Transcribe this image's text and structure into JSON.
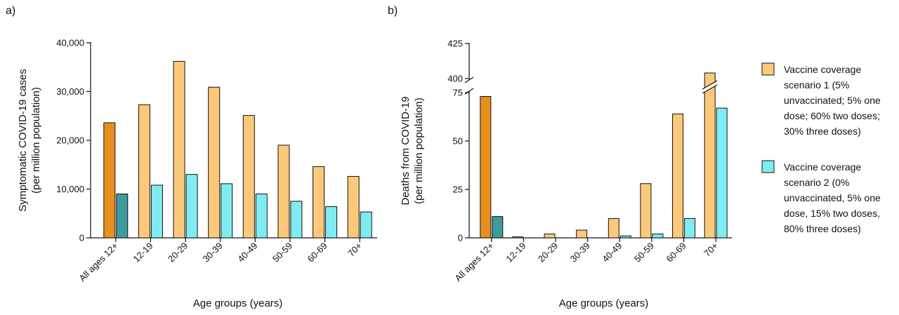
{
  "chart_data": [
    {
      "type": "bar",
      "panel_label": "a)",
      "ylabel": [
        "Symptomatic COVID-19 cases",
        "(per million population)"
      ],
      "xlabel": "Age groups (years)",
      "ylim": [
        0,
        40000
      ],
      "yticks": [
        0,
        10000,
        20000,
        30000,
        40000
      ],
      "ytick_labels": [
        "0",
        "10,000",
        "20,000",
        "30,000",
        "40,000"
      ],
      "categories": [
        "All ages 12+",
        "12-19",
        "20-29",
        "30-39",
        "40-49",
        "50-59",
        "60-69",
        "70+"
      ],
      "series": [
        {
          "values": [
            23600,
            27300,
            36200,
            30900,
            25100,
            19000,
            14600,
            12600
          ]
        },
        {
          "values": [
            9000,
            10800,
            13000,
            11100,
            9000,
            7500,
            6400,
            5300
          ]
        }
      ]
    },
    {
      "type": "bar",
      "panel_label": "b)",
      "ylabel": [
        "Deaths from COVID-19",
        "(per million population)"
      ],
      "xlabel": "Age groups (years)",
      "y_axis_break": true,
      "ylim_lower": [
        0,
        75
      ],
      "ylim_upper": [
        400,
        425
      ],
      "yticks": [
        0,
        25,
        50,
        75,
        400,
        425
      ],
      "ytick_labels": [
        "0",
        "25",
        "50",
        "75",
        "400",
        "425"
      ],
      "categories": [
        "All ages 12+",
        "12-19",
        "20-29",
        "30-39",
        "40-49",
        "50-59",
        "60-69",
        "70+"
      ],
      "series": [
        {
          "values": [
            73,
            0.5,
            2,
            4,
            10,
            28,
            64,
            404
          ]
        },
        {
          "values": [
            11,
            0,
            0,
            0,
            1,
            2,
            10,
            67
          ]
        }
      ]
    }
  ],
  "legend": {
    "position": "right",
    "entries": [
      {
        "lines": [
          "Vaccine coverage",
          "scenario 1 (5%",
          "unvaccinated; 5% one",
          "dose; 60% two doses;",
          "30% three doses)"
        ]
      },
      {
        "lines": [
          "Vaccine coverage",
          "scenario 2 (0%",
          "unvaccinated, 5% one",
          "dose, 15% two doses,",
          "80% three doses)"
        ]
      }
    ]
  },
  "colors": {
    "scenario1": "#fcc97a",
    "scenario2": "#7fecf1",
    "scenario1_highlight": "#e8901e",
    "scenario2_highlight": "#3f9a9e",
    "outline": "#111111"
  }
}
